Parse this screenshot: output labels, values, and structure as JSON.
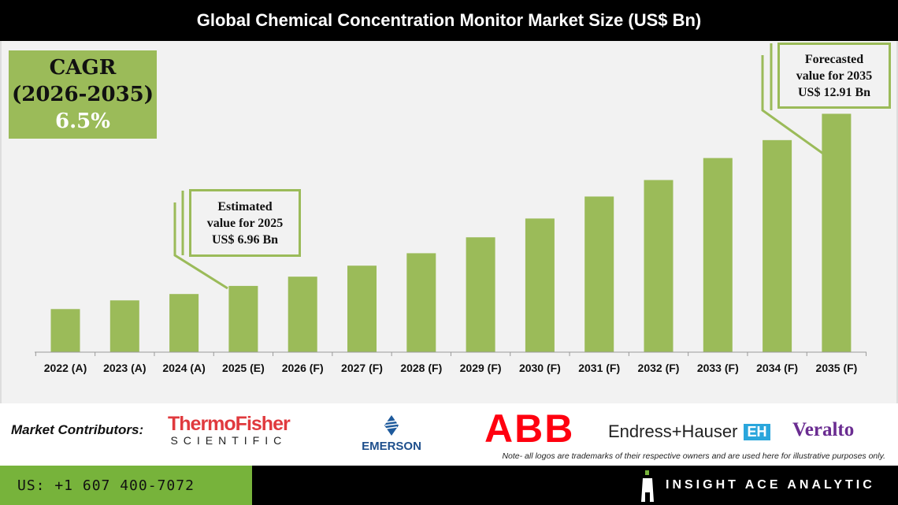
{
  "title": "Global Chemical Concentration Monitor Market Size (US$ Bn)",
  "cagr": {
    "line1": "CAGR",
    "line2": "(2026-2035)",
    "value": "6.5%"
  },
  "callouts": {
    "estimated": {
      "line1": "Estimated",
      "line2": "value for 2025",
      "line3": "US$ 6.96 Bn"
    },
    "forecast": {
      "line1": "Forecasted",
      "line2": "value for 2035",
      "line3": "US$ 12.91 Bn"
    }
  },
  "colors": {
    "bar": "#9bbb59",
    "header": "#000000",
    "footer_green": "#77b33b",
    "plot_bg": "#f2f2f2"
  },
  "chart_data": {
    "type": "bar",
    "title": "Global Chemical Concentration Monitor Market Size (US$ Bn)",
    "categories": [
      "2022 (A)",
      "2023 (A)",
      "2024 (A)",
      "2025 (E)",
      "2026 (F)",
      "2027 (F)",
      "2028 (F)",
      "2029 (F)",
      "2030 (F)",
      "2031 (F)",
      "2032 (F)",
      "2033 (F)",
      "2034 (F)",
      "2035 (F)"
    ],
    "values": [
      6.16,
      6.46,
      6.68,
      6.96,
      7.28,
      7.66,
      8.09,
      8.64,
      9.29,
      10.05,
      10.62,
      11.38,
      12.0,
      12.91
    ],
    "xlabel": "",
    "ylabel": "",
    "ylim": [
      4.67,
      15.4
    ],
    "grid": false,
    "legend": "none"
  },
  "contributors": {
    "label": "Market Contributors:",
    "logos": [
      "ThermoFisher",
      "SCIENTIFIC",
      "EMERSON",
      "ABB",
      "Endress+Hauser",
      "Veralto"
    ],
    "note": "Note- all logos are trademarks of their respective owners and are used here for illustrative purposes only."
  },
  "footer": {
    "phone": "US: +1 607 400-7072",
    "brand": "INSIGHT ACE ANALYTIC"
  }
}
